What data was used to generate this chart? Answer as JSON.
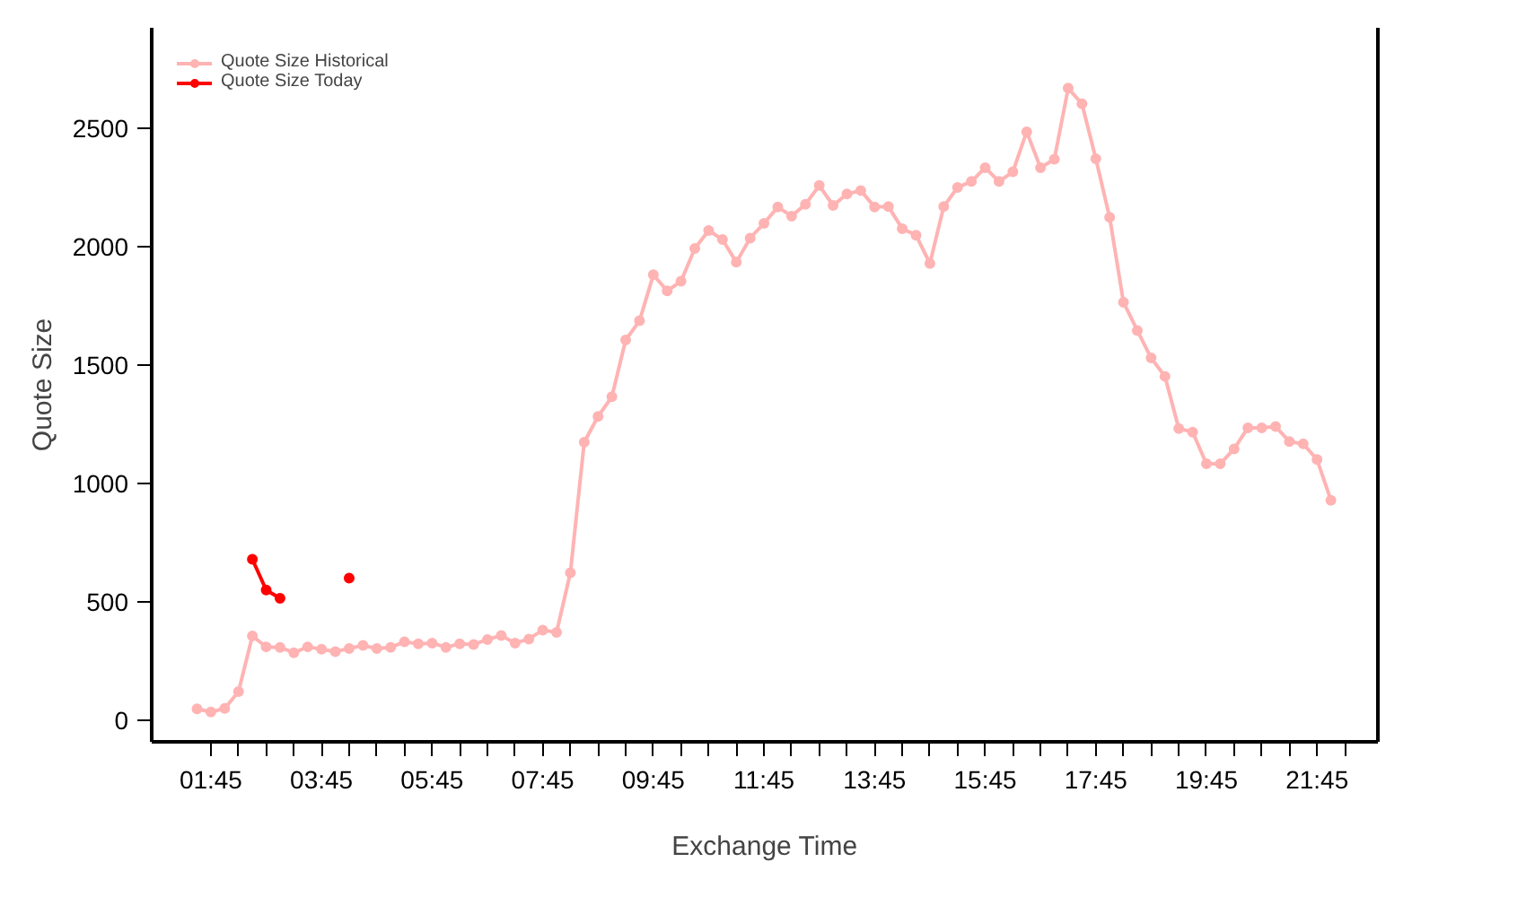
{
  "chart_data": {
    "type": "line",
    "xlabel": "Exchange Time",
    "ylabel": "Quote Size",
    "x": [
      1.5,
      1.75,
      2,
      2.25,
      2.5,
      2.75,
      3,
      3.25,
      3.5,
      3.75,
      4,
      4.25,
      4.5,
      4.75,
      5,
      5.25,
      5.5,
      5.75,
      6,
      6.25,
      6.5,
      6.75,
      7,
      7.25,
      7.5,
      7.75,
      8,
      8.25,
      8.5,
      8.75,
      9,
      9.25,
      9.5,
      9.75,
      10,
      10.25,
      10.5,
      10.75,
      11,
      11.25,
      11.5,
      11.75,
      12,
      12.25,
      12.5,
      12.75,
      13,
      13.25,
      13.5,
      13.75,
      14,
      14.25,
      14.5,
      14.75,
      15,
      15.25,
      15.5,
      15.75,
      16,
      16.25,
      16.5,
      16.75,
      17,
      17.25,
      17.5,
      17.75,
      18,
      18.25,
      18.5,
      18.75,
      19,
      19.25,
      19.5,
      19.75,
      20,
      20.25,
      20.5,
      20.75,
      21,
      21.25,
      21.5,
      21.75,
      22
    ],
    "series": [
      {
        "name": "Quote Size Historical",
        "color": "#ffb3b3",
        "values": [
          48,
          35,
          50,
          121,
          356,
          310,
          308,
          285,
          310,
          300,
          290,
          303,
          316,
          303,
          308,
          331,
          323,
          326,
          308,
          323,
          320,
          341,
          358,
          326,
          343,
          381,
          371,
          623,
          1174,
          1283,
          1366,
          1606,
          1687,
          1881,
          1813,
          1854,
          1992,
          2068,
          2030,
          1934,
          2036,
          2098,
          2167,
          2129,
          2179,
          2258,
          2174,
          2222,
          2237,
          2167,
          2169,
          2076,
          2048,
          1929,
          2169,
          2250,
          2275,
          2333,
          2275,
          2316,
          2485,
          2333,
          2369,
          2669,
          2603,
          2371,
          2124,
          1765,
          1646,
          1530,
          1452,
          1232,
          1217,
          1083,
          1083,
          1146,
          1235,
          1235,
          1240,
          1177,
          1167,
          1101,
          929
        ]
      },
      {
        "name": "Quote Size Today",
        "color": "#ff0000",
        "x": [
          2.5,
          2.75,
          3,
          3.25,
          3.5,
          3.75,
          4,
          4.25
        ],
        "values": [
          680,
          550,
          515,
          null,
          null,
          null,
          null,
          600
        ]
      }
    ],
    "xlim": [
      0.68,
      22.85
    ],
    "ylim": [
      -91,
      2924
    ],
    "xticks": [
      {
        "value": 1.75,
        "label": "01:45"
      },
      {
        "value": 2.25,
        "label": null
      },
      {
        "value": 2.75,
        "label": null
      },
      {
        "value": 3.25,
        "label": null
      },
      {
        "value": 3.75,
        "label": "03:45"
      },
      {
        "value": 4.25,
        "label": null
      },
      {
        "value": 4.75,
        "label": null
      },
      {
        "value": 5.25,
        "label": null
      },
      {
        "value": 5.75,
        "label": "05:45"
      },
      {
        "value": 6.25,
        "label": null
      },
      {
        "value": 6.75,
        "label": null
      },
      {
        "value": 7.25,
        "label": null
      },
      {
        "value": 7.75,
        "label": "07:45"
      },
      {
        "value": 8.25,
        "label": null
      },
      {
        "value": 8.75,
        "label": null
      },
      {
        "value": 9.25,
        "label": null
      },
      {
        "value": 9.75,
        "label": "09:45"
      },
      {
        "value": 10.25,
        "label": null
      },
      {
        "value": 10.75,
        "label": null
      },
      {
        "value": 11.25,
        "label": null
      },
      {
        "value": 11.75,
        "label": "11:45"
      },
      {
        "value": 12.25,
        "label": null
      },
      {
        "value": 12.75,
        "label": null
      },
      {
        "value": 13.25,
        "label": null
      },
      {
        "value": 13.75,
        "label": "13:45"
      },
      {
        "value": 14.25,
        "label": null
      },
      {
        "value": 14.75,
        "label": null
      },
      {
        "value": 15.25,
        "label": null
      },
      {
        "value": 15.75,
        "label": "15:45"
      },
      {
        "value": 16.25,
        "label": null
      },
      {
        "value": 16.75,
        "label": null
      },
      {
        "value": 17.25,
        "label": null
      },
      {
        "value": 17.75,
        "label": "17:45"
      },
      {
        "value": 18.25,
        "label": null
      },
      {
        "value": 18.75,
        "label": null
      },
      {
        "value": 19.25,
        "label": null
      },
      {
        "value": 19.75,
        "label": "19:45"
      },
      {
        "value": 20.25,
        "label": null
      },
      {
        "value": 20.75,
        "label": null
      },
      {
        "value": 21.25,
        "label": null
      },
      {
        "value": 21.75,
        "label": "21:45"
      },
      {
        "value": 22.25,
        "label": null
      }
    ],
    "yticks": [
      0,
      500,
      1000,
      1500,
      2000,
      2500
    ],
    "grid": false,
    "legend": "top left",
    "marker": "circle",
    "line_style": "solid"
  }
}
